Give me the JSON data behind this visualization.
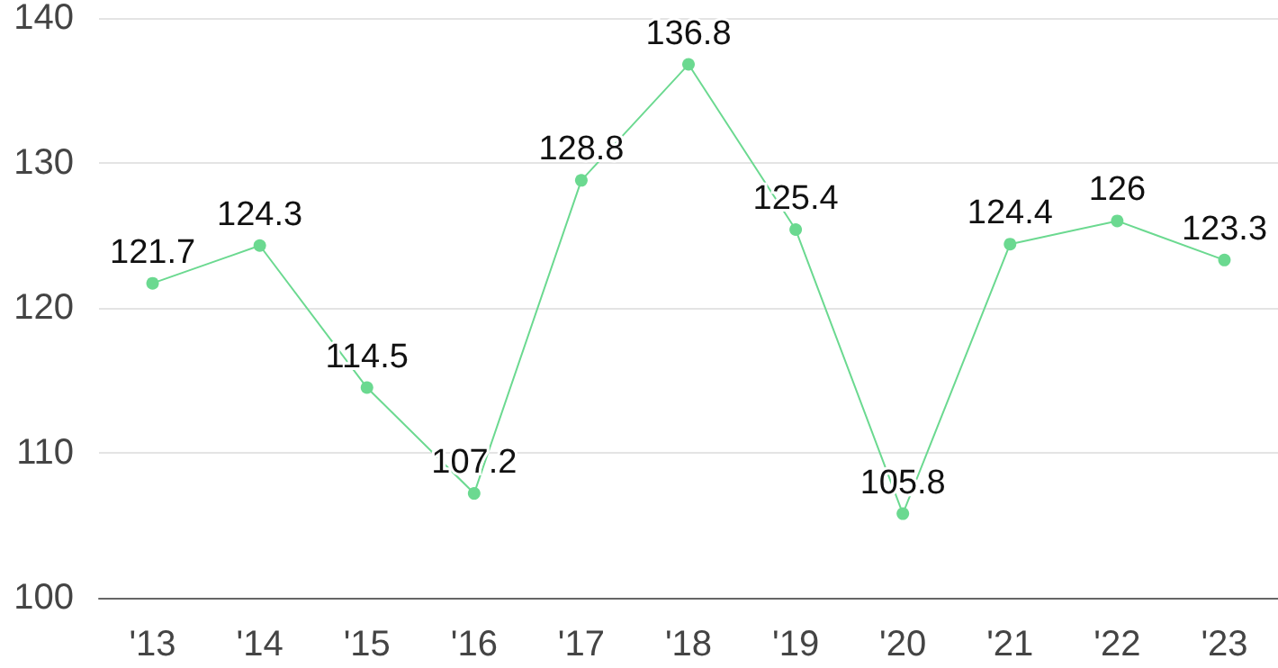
{
  "chart_data": {
    "type": "line",
    "categories": [
      "'13",
      "'14",
      "'15",
      "'16",
      "'17",
      "'18",
      "'19",
      "'20",
      "'21",
      "'22",
      "'23"
    ],
    "values": [
      121.7,
      124.3,
      114.5,
      107.2,
      128.8,
      136.8,
      125.4,
      105.8,
      124.4,
      126,
      123.3
    ],
    "color": "#6bd990",
    "ylim": [
      100,
      140
    ],
    "yticks": [
      100,
      110,
      120,
      130,
      140
    ],
    "grid": "y",
    "marker": "circle",
    "line_style": "solid",
    "data_labels": true
  }
}
